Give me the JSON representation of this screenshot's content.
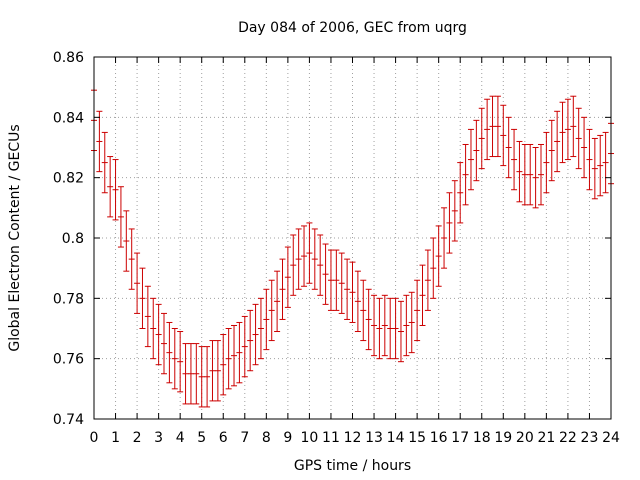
{
  "chart_data": {
    "type": "line",
    "title": "Day 084 of 2006, GEC from uqrg",
    "xlabel": "GPS time / hours",
    "ylabel": "Global Electron Content / GECUs",
    "xlim": [
      0,
      24
    ],
    "ylim": [
      0.74,
      0.86
    ],
    "x_ticks": [
      "0",
      "1",
      "2",
      "3",
      "4",
      "5",
      "6",
      "7",
      "8",
      "9",
      "10",
      "11",
      "12",
      "13",
      "14",
      "15",
      "16",
      "17",
      "18",
      "19",
      "20",
      "21",
      "22",
      "23",
      "24"
    ],
    "y_ticks": [
      "0.74",
      "0.76",
      "0.78",
      "0.8",
      "0.82",
      "0.84",
      "0.86"
    ],
    "grid": true,
    "series_color": "#cc0000",
    "series": [
      {
        "error_bar_halfwidth": 0.01,
        "x": [
          0,
          0.25,
          0.5,
          0.75,
          1,
          1.25,
          1.5,
          1.75,
          2,
          2.25,
          2.5,
          2.75,
          3,
          3.25,
          3.5,
          3.75,
          4,
          4.25,
          4.5,
          4.75,
          5,
          5.25,
          5.5,
          5.75,
          6,
          6.25,
          6.5,
          6.75,
          7,
          7.25,
          7.5,
          7.75,
          8,
          8.25,
          8.5,
          8.75,
          9,
          9.25,
          9.5,
          9.75,
          10,
          10.25,
          10.5,
          10.75,
          11,
          11.25,
          11.5,
          11.75,
          12,
          12.25,
          12.5,
          12.75,
          13,
          13.25,
          13.5,
          13.75,
          14,
          14.25,
          14.5,
          14.75,
          15,
          15.25,
          15.5,
          15.75,
          16,
          16.25,
          16.5,
          16.75,
          17,
          17.25,
          17.5,
          17.75,
          18,
          18.25,
          18.5,
          18.75,
          19,
          19.25,
          19.5,
          19.75,
          20,
          20.25,
          20.5,
          20.75,
          21,
          21.25,
          21.5,
          21.75,
          22,
          22.25,
          22.5,
          22.75,
          23,
          23.25,
          23.5,
          23.75,
          24
        ],
        "values": [
          0.839,
          0.832,
          0.825,
          0.817,
          0.816,
          0.807,
          0.799,
          0.793,
          0.785,
          0.78,
          0.774,
          0.77,
          0.768,
          0.765,
          0.762,
          0.76,
          0.759,
          0.755,
          0.755,
          0.755,
          0.754,
          0.754,
          0.756,
          0.756,
          0.758,
          0.76,
          0.761,
          0.762,
          0.764,
          0.766,
          0.768,
          0.77,
          0.773,
          0.776,
          0.779,
          0.783,
          0.787,
          0.791,
          0.793,
          0.794,
          0.795,
          0.793,
          0.791,
          0.788,
          0.786,
          0.786,
          0.785,
          0.783,
          0.782,
          0.779,
          0.776,
          0.773,
          0.771,
          0.77,
          0.771,
          0.77,
          0.77,
          0.769,
          0.771,
          0.772,
          0.776,
          0.781,
          0.786,
          0.79,
          0.794,
          0.8,
          0.805,
          0.809,
          0.815,
          0.821,
          0.826,
          0.829,
          0.833,
          0.836,
          0.837,
          0.837,
          0.834,
          0.83,
          0.826,
          0.822,
          0.821,
          0.821,
          0.82,
          0.821,
          0.825,
          0.829,
          0.832,
          0.835,
          0.836,
          0.837,
          0.833,
          0.83,
          0.826,
          0.823,
          0.824,
          0.825,
          0.828
        ]
      }
    ]
  }
}
